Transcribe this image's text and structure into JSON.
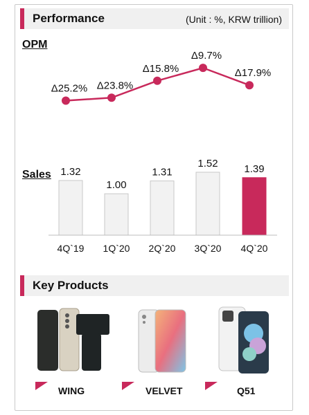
{
  "performance": {
    "title": "Performance",
    "unit": "(Unit : %, KRW trillion)"
  },
  "key_products": {
    "title": "Key Products",
    "items": [
      {
        "name": "WING",
        "icon": "phone-wing-icon"
      },
      {
        "name": "VELVET",
        "icon": "phone-velvet-icon"
      },
      {
        "name": "Q51",
        "icon": "phone-q51-icon"
      }
    ]
  },
  "colors": {
    "accent": "#c8295b",
    "bar_default": "#f2f2f2",
    "bar_border": "#c8c8c8"
  },
  "chart_data": [
    {
      "type": "line",
      "label": "OPM",
      "categories": [
        "4Q`19",
        "1Q`20",
        "2Q`20",
        "3Q`20",
        "4Q`20"
      ],
      "data_labels": [
        "Δ25.2%",
        "Δ23.8%",
        "Δ15.8%",
        "Δ9.7%",
        "Δ17.9%"
      ],
      "values": [
        -25.2,
        -23.8,
        -15.8,
        -9.7,
        -17.9
      ]
    },
    {
      "type": "bar",
      "label": "Sales",
      "categories": [
        "4Q`19",
        "1Q`20",
        "2Q`20",
        "3Q`20",
        "4Q`20"
      ],
      "data_labels": [
        "1.32",
        "1.00",
        "1.31",
        "1.52",
        "1.39"
      ],
      "values": [
        1.32,
        1.0,
        1.31,
        1.52,
        1.39
      ],
      "highlight_index": 4
    }
  ]
}
